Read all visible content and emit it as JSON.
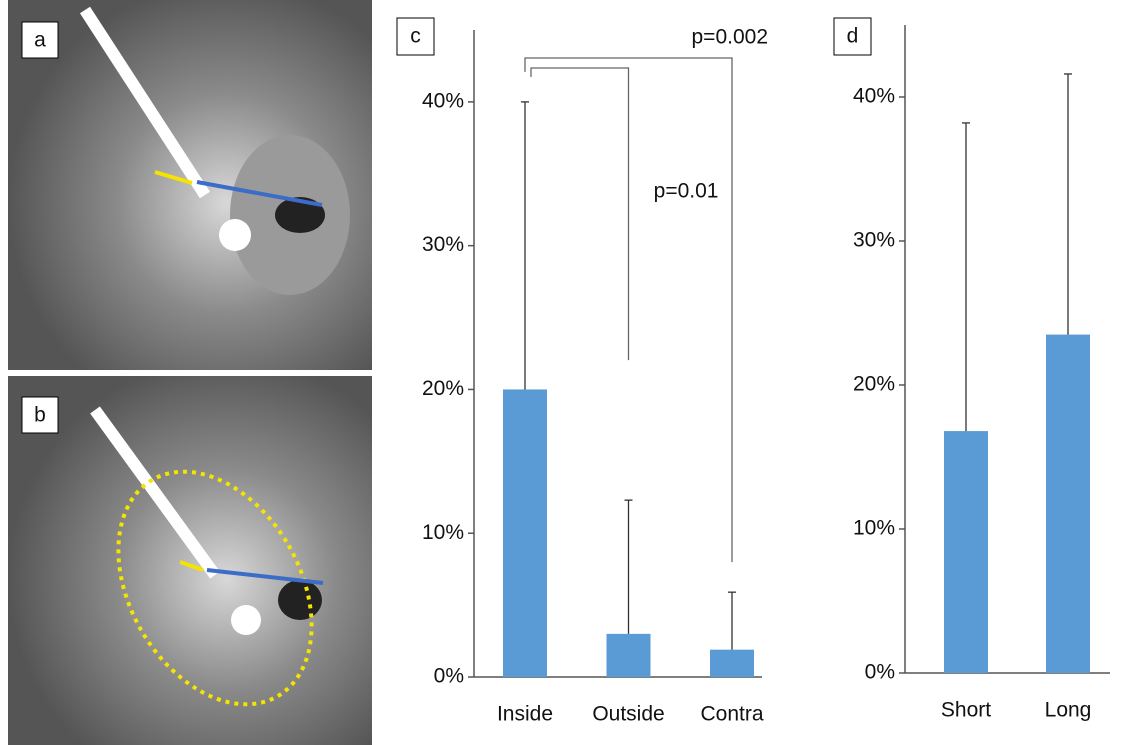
{
  "image_panels": [
    {
      "label": "a"
    },
    {
      "label": "b"
    }
  ],
  "chart_data": [
    {
      "type": "bar",
      "panel_label": "c",
      "categories": [
        "Inside",
        "Outside",
        "Contra"
      ],
      "values": [
        20,
        3,
        1.9
      ],
      "errors": [
        20,
        9.3,
        4.0
      ],
      "color": "#5b9bd5",
      "ylim": [
        0,
        45
      ],
      "yticks": [
        {
          "value": 0,
          "label": "0%"
        },
        {
          "value": 10,
          "label": "10%"
        },
        {
          "value": 20,
          "label": "20%"
        },
        {
          "value": 30,
          "label": "30%"
        },
        {
          "value": 40,
          "label": "40%"
        }
      ],
      "annotations": [
        "p=0.002",
        "p=0.01"
      ]
    },
    {
      "type": "bar",
      "panel_label": "d",
      "categories": [
        "Short",
        "Long"
      ],
      "values": [
        16.8,
        23.5
      ],
      "errors": [
        21.4,
        18.1
      ],
      "color": "#5b9bd5",
      "ylim": [
        0,
        45
      ],
      "yticks": [
        {
          "value": 0,
          "label": "0%"
        },
        {
          "value": 10,
          "label": "10%"
        },
        {
          "value": 20,
          "label": "20%"
        },
        {
          "value": 30,
          "label": "30%"
        },
        {
          "value": 40,
          "label": "40%"
        }
      ]
    }
  ]
}
